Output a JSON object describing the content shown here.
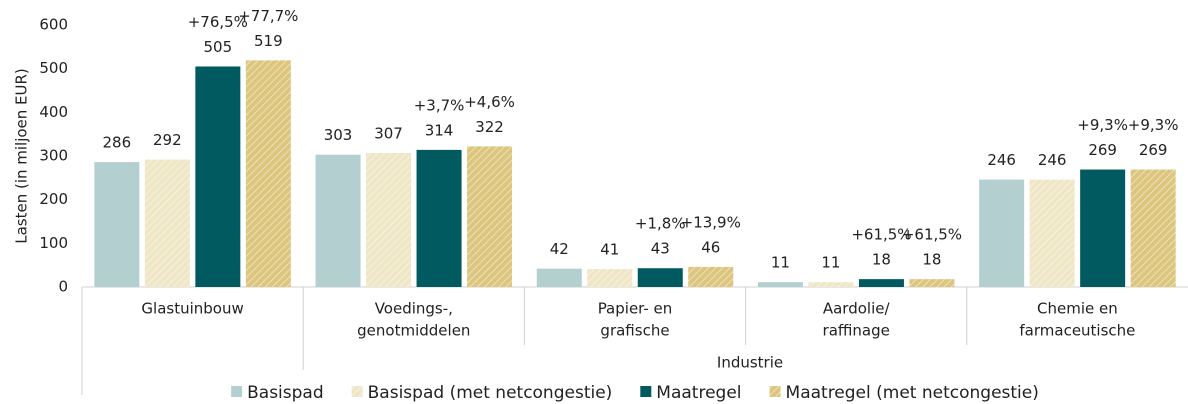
{
  "chart_data": {
    "type": "bar",
    "y_label": "Lasten (in miljoen EUR)",
    "x_label": "Industrie",
    "categories": [
      [
        "Glastuinbouw"
      ],
      [
        "Voedings-,",
        "genotmiddelen"
      ],
      [
        "Papier- en",
        "grafische"
      ],
      [
        "Aardolie/",
        "raffinage"
      ],
      [
        "Chemie en",
        "farmaceutische"
      ]
    ],
    "series": [
      {
        "name": "Basispad",
        "color": "#b3cfcf",
        "hatch": false,
        "values": [
          286,
          303,
          42,
          11,
          246
        ]
      },
      {
        "name": "Basispad (met netcongestie)",
        "color": "#efe6c6",
        "hatch": true,
        "values": [
          292,
          307,
          41,
          11,
          246
        ]
      },
      {
        "name": "Maatregel",
        "color": "#005a5f",
        "hatch": false,
        "values": [
          505,
          314,
          43,
          18,
          269
        ],
        "annotations": [
          "+76,5%",
          "+3,7%",
          "+1,8%",
          "+61,5%",
          "+9,3%"
        ]
      },
      {
        "name": "Maatregel (met netcongestie)",
        "color": "#dcc57c",
        "hatch": true,
        "values": [
          519,
          322,
          46,
          18,
          269
        ],
        "annotations": [
          "+77,7%",
          "+4,6%",
          "+13,9%",
          "+61,5%",
          "+9,3%"
        ]
      }
    ],
    "ylim": [
      0,
      600
    ],
    "yticks": [
      0,
      100,
      200,
      300,
      400,
      500,
      600
    ],
    "grid": false,
    "legend": "bottom"
  }
}
